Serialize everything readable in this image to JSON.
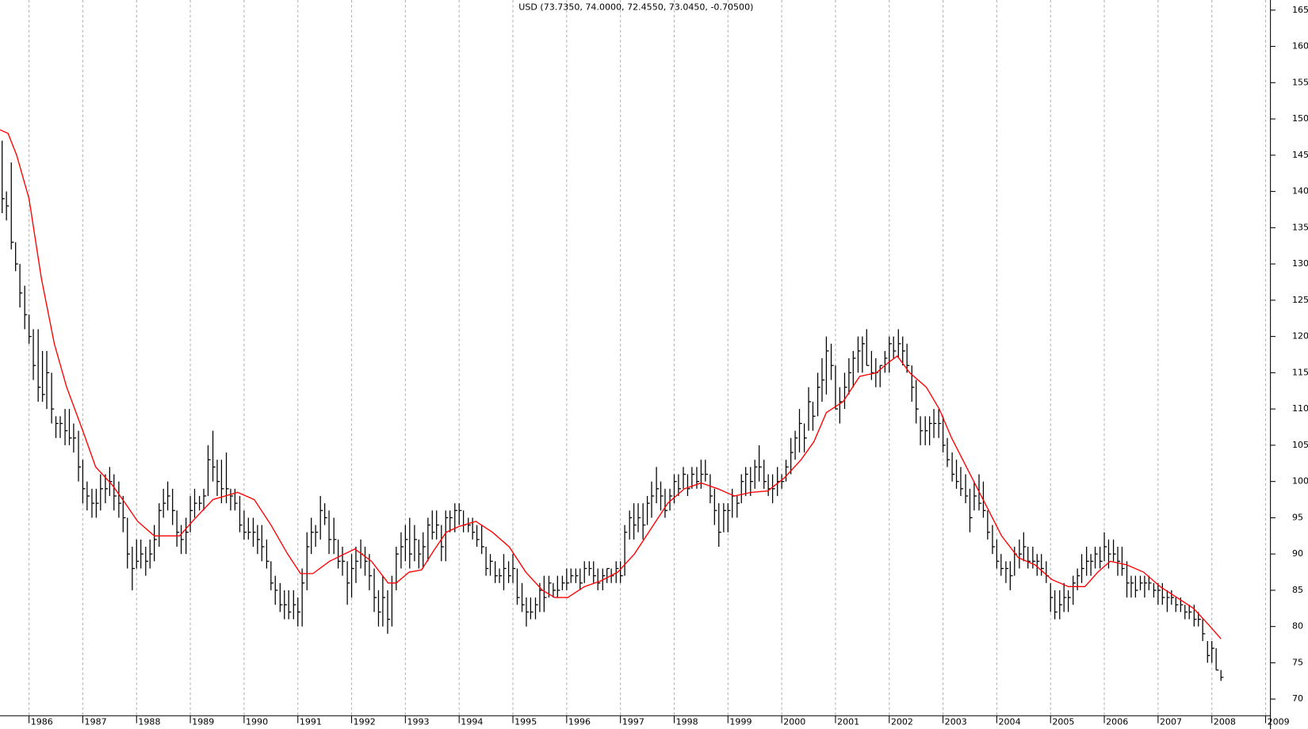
{
  "chart_data": {
    "type": "ohlc",
    "title": "USD (73.7350, 74.0000, 72.4550, 73.0450, -0.70500)",
    "xlim": [
      1985.46,
      2009.09
    ],
    "ylim": [
      67.7,
      166.4
    ],
    "xticks": [
      1986,
      1987,
      1988,
      1989,
      1990,
      1991,
      1992,
      1993,
      1994,
      1995,
      1996,
      1997,
      1998,
      1999,
      2000,
      2001,
      2002,
      2003,
      2004,
      2005,
      2006,
      2007,
      2008,
      2009
    ],
    "yticks": [
      70,
      75,
      80,
      85,
      90,
      95,
      100,
      105,
      110,
      115,
      120,
      125,
      130,
      135,
      140,
      145,
      150,
      155,
      160,
      165
    ],
    "grid": true,
    "color": "#000000",
    "x": [
      1985.5,
      1985.58,
      1985.67,
      1985.75,
      1985.83,
      1985.92,
      1986,
      1986.08,
      1986.17,
      1986.25,
      1986.33,
      1986.42,
      1986.5,
      1986.58,
      1986.67,
      1986.75,
      1986.83,
      1986.92,
      1987,
      1987.08,
      1987.17,
      1987.25,
      1987.33,
      1987.42,
      1987.5,
      1987.58,
      1987.67,
      1987.75,
      1987.83,
      1987.92,
      1988,
      1988.08,
      1988.17,
      1988.25,
      1988.33,
      1988.42,
      1988.5,
      1988.58,
      1988.67,
      1988.75,
      1988.83,
      1988.92,
      1989,
      1989.08,
      1989.17,
      1989.25,
      1989.33,
      1989.42,
      1989.5,
      1989.58,
      1989.67,
      1989.75,
      1989.83,
      1989.92,
      1990,
      1990.08,
      1990.17,
      1990.25,
      1990.33,
      1990.42,
      1990.5,
      1990.58,
      1990.67,
      1990.75,
      1990.83,
      1990.92,
      1991,
      1991.08,
      1991.17,
      1991.25,
      1991.33,
      1991.42,
      1991.5,
      1991.58,
      1991.67,
      1991.75,
      1991.83,
      1991.92,
      1992,
      1992.08,
      1992.17,
      1992.25,
      1992.33,
      1992.42,
      1992.5,
      1992.58,
      1992.67,
      1992.75,
      1992.83,
      1992.92,
      1993,
      1993.08,
      1993.17,
      1993.25,
      1993.33,
      1993.42,
      1993.5,
      1993.58,
      1993.67,
      1993.75,
      1993.83,
      1993.92,
      1994,
      1994.08,
      1994.17,
      1994.25,
      1994.33,
      1994.42,
      1994.5,
      1994.58,
      1994.67,
      1994.75,
      1994.83,
      1994.92,
      1995,
      1995.08,
      1995.17,
      1995.25,
      1995.33,
      1995.42,
      1995.5,
      1995.58,
      1995.67,
      1995.75,
      1995.83,
      1995.92,
      1996,
      1996.08,
      1996.17,
      1996.25,
      1996.33,
      1996.42,
      1996.5,
      1996.58,
      1996.67,
      1996.75,
      1996.83,
      1996.92,
      1997,
      1997.08,
      1997.17,
      1997.25,
      1997.33,
      1997.42,
      1997.5,
      1997.58,
      1997.67,
      1997.75,
      1997.83,
      1997.92,
      1998,
      1998.08,
      1998.17,
      1998.25,
      1998.33,
      1998.42,
      1998.5,
      1998.58,
      1998.67,
      1998.75,
      1998.83,
      1998.92,
      1999,
      1999.08,
      1999.17,
      1999.25,
      1999.33,
      1999.42,
      1999.5,
      1999.58,
      1999.67,
      1999.75,
      1999.83,
      1999.92,
      2000,
      2000.08,
      2000.17,
      2000.25,
      2000.33,
      2000.42,
      2000.5,
      2000.58,
      2000.67,
      2000.75,
      2000.83,
      2000.92,
      2001,
      2001.08,
      2001.17,
      2001.25,
      2001.33,
      2001.42,
      2001.5,
      2001.58,
      2001.67,
      2001.75,
      2001.83,
      2001.92,
      2002,
      2002.08,
      2002.17,
      2002.25,
      2002.33,
      2002.42,
      2002.5,
      2002.58,
      2002.67,
      2002.75,
      2002.83,
      2002.92,
      2003,
      2003.08,
      2003.17,
      2003.25,
      2003.33,
      2003.42,
      2003.5,
      2003.58,
      2003.67,
      2003.75,
      2003.83,
      2003.92,
      2004,
      2004.08,
      2004.17,
      2004.25,
      2004.33,
      2004.42,
      2004.5,
      2004.58,
      2004.67,
      2004.75,
      2004.83,
      2004.92,
      2005,
      2005.08,
      2005.17,
      2005.25,
      2005.33,
      2005.42,
      2005.5,
      2005.58,
      2005.67,
      2005.75,
      2005.83,
      2005.92,
      2006,
      2006.08,
      2006.17,
      2006.25,
      2006.33,
      2006.42,
      2006.5,
      2006.58,
      2006.67,
      2006.75,
      2006.83,
      2006.92,
      2007,
      2007.08,
      2007.17,
      2007.25,
      2007.33,
      2007.42,
      2007.5,
      2007.58,
      2007.67,
      2007.75,
      2007.83,
      2007.92,
      2008,
      2008.08,
      2008.17
    ],
    "high": [
      147,
      140,
      144,
      133,
      130,
      127,
      123,
      121,
      121,
      118,
      118,
      115,
      109,
      109,
      110,
      110,
      108,
      107,
      103,
      100,
      99,
      99,
      101,
      101,
      102,
      101,
      100,
      98,
      95,
      91,
      92,
      92,
      91,
      92,
      94,
      97,
      99,
      100,
      99,
      96,
      94,
      95,
      98,
      99,
      98,
      99,
      105,
      107,
      103,
      103,
      104,
      99,
      99,
      98,
      96,
      95,
      95,
      94,
      94,
      92,
      89,
      87,
      86,
      85,
      85,
      85,
      84,
      88,
      93,
      95,
      94,
      98,
      97,
      96,
      95,
      92,
      91,
      89,
      90,
      91,
      92,
      91,
      90,
      88,
      85,
      87,
      85,
      87,
      91,
      93,
      94,
      95,
      94,
      92,
      93,
      95,
      96,
      96,
      94,
      96,
      96,
      97,
      97,
      96,
      95,
      95,
      94,
      94,
      91,
      90,
      89,
      88,
      90,
      89,
      90,
      88,
      86,
      84,
      84,
      84,
      86,
      87,
      87,
      86,
      87,
      87,
      88,
      88,
      88,
      88,
      89,
      89,
      89,
      88,
      88,
      88,
      88,
      89,
      89,
      94,
      96,
      97,
      97,
      97,
      98,
      100,
      102,
      100,
      99,
      99,
      101,
      101,
      102,
      101,
      102,
      102,
      103,
      103,
      101,
      99,
      97,
      97,
      97,
      99,
      98,
      101,
      102,
      102,
      103,
      105,
      103,
      101,
      101,
      102,
      101,
      103,
      106,
      107,
      110,
      108,
      113,
      111,
      115,
      117,
      120,
      119,
      116,
      113,
      115,
      117,
      118,
      120,
      120,
      121,
      118,
      117,
      116,
      118,
      120,
      120,
      121,
      120,
      119,
      116,
      114,
      109,
      109,
      109,
      110,
      110,
      109,
      106,
      104,
      103,
      102,
      101,
      99,
      100,
      101,
      100,
      96,
      94,
      92,
      90,
      89,
      89,
      91,
      92,
      93,
      91,
      91,
      90,
      90,
      89,
      86,
      85,
      85,
      86,
      85,
      87,
      88,
      90,
      91,
      90,
      91,
      91,
      93,
      92,
      92,
      91,
      91,
      89,
      87,
      87,
      87,
      87,
      87,
      86,
      86,
      86,
      85,
      85,
      84,
      84,
      83,
      83,
      83,
      82,
      81,
      78,
      78,
      77,
      74
    ],
    "low": [
      137,
      136,
      132,
      129,
      124,
      121,
      119,
      114,
      111,
      111,
      110,
      108,
      106,
      106,
      105,
      105,
      104,
      100,
      97,
      96,
      95,
      95,
      96,
      97,
      98,
      96,
      95,
      93,
      88,
      85,
      88,
      88,
      87,
      88,
      89,
      91,
      95,
      96,
      94,
      91,
      90,
      90,
      93,
      95,
      96,
      96,
      98,
      100,
      98,
      97,
      97,
      96,
      96,
      93,
      92,
      92,
      91,
      90,
      89,
      88,
      85,
      83,
      82,
      81,
      81,
      81,
      80,
      80,
      85,
      90,
      91,
      92,
      94,
      90,
      90,
      88,
      87,
      83,
      84,
      86,
      88,
      87,
      85,
      82,
      80,
      80,
      79,
      80,
      85,
      88,
      89,
      88,
      89,
      88,
      88,
      89,
      92,
      92,
      89,
      89,
      93,
      93,
      94,
      93,
      93,
      92,
      91,
      90,
      87,
      87,
      86,
      86,
      85,
      86,
      86,
      83,
      82,
      80,
      81,
      81,
      82,
      82,
      84,
      84,
      84,
      85,
      85,
      86,
      86,
      85,
      86,
      87,
      86,
      85,
      85,
      86,
      86,
      86,
      86,
      87,
      92,
      92,
      93,
      92,
      94,
      95,
      97,
      96,
      95,
      96,
      97,
      98,
      99,
      98,
      99,
      99,
      99,
      100,
      97,
      94,
      91,
      93,
      93,
      95,
      95,
      97,
      98,
      98,
      99,
      100,
      99,
      98,
      97,
      98,
      99,
      100,
      101,
      103,
      104,
      104,
      107,
      107,
      109,
      111,
      112,
      114,
      110,
      108,
      110,
      112,
      113,
      115,
      115,
      116,
      114,
      113,
      113,
      115,
      115,
      117,
      117,
      116,
      115,
      111,
      108,
      105,
      105,
      105,
      106,
      106,
      104,
      102,
      100,
      99,
      98,
      97,
      93,
      96,
      96,
      95,
      92,
      90,
      88,
      87,
      86,
      85,
      87,
      88,
      89,
      88,
      88,
      87,
      87,
      86,
      82,
      81,
      81,
      82,
      82,
      83,
      85,
      86,
      87,
      87,
      88,
      88,
      89,
      88,
      89,
      87,
      87,
      84,
      84,
      84,
      85,
      84,
      85,
      84,
      83,
      83,
      82,
      83,
      82,
      82,
      81,
      81,
      80,
      80,
      78,
      75,
      75,
      74,
      72.5
    ],
    "close": [
      139,
      138,
      133,
      130,
      126,
      123,
      120,
      116,
      113,
      112,
      115,
      110,
      108,
      108,
      107,
      106,
      106,
      102,
      99,
      98,
      97,
      97,
      99,
      99,
      100,
      98,
      97,
      95,
      90,
      88,
      89,
      90,
      89,
      90,
      92,
      96,
      97,
      98,
      96,
      93,
      92,
      93,
      96,
      97,
      97,
      98,
      103,
      102,
      100,
      99,
      99,
      98,
      97,
      94,
      93,
      93,
      93,
      92,
      91,
      89,
      86,
      85,
      83,
      83,
      82,
      83,
      82,
      86,
      91,
      93,
      93,
      96,
      95,
      92,
      92,
      89,
      89,
      86,
      88,
      89,
      90,
      89,
      87,
      84,
      82,
      84,
      81,
      86,
      90,
      91,
      92,
      90,
      92,
      90,
      91,
      94,
      93,
      94,
      91,
      95,
      95,
      96,
      96,
      94,
      94,
      93,
      92,
      91,
      88,
      89,
      87,
      87,
      88,
      87,
      88,
      84,
      83,
      82,
      82,
      83,
      85,
      84,
      86,
      85,
      85,
      86,
      86,
      87,
      87,
      86,
      88,
      88,
      87,
      86,
      87,
      88,
      87,
      88,
      87,
      93,
      95,
      94,
      95,
      94,
      97,
      98,
      99,
      98,
      96,
      98,
      100,
      99,
      101,
      99,
      101,
      100,
      101,
      101,
      98,
      96,
      93,
      96,
      96,
      98,
      97,
      100,
      101,
      100,
      102,
      102,
      100,
      99,
      99,
      100,
      100,
      102,
      104,
      106,
      108,
      106,
      111,
      109,
      113,
      114,
      118,
      116,
      110,
      111,
      113,
      115,
      117,
      118,
      119,
      116,
      115,
      115,
      116,
      117,
      119,
      118,
      119,
      118,
      116,
      113,
      110,
      107,
      107,
      108,
      108,
      108,
      105,
      103,
      101,
      100,
      99,
      98,
      95,
      98,
      97,
      96,
      93,
      91,
      89,
      88,
      88,
      87,
      90,
      90,
      91,
      89,
      89,
      89,
      88,
      87,
      84,
      82,
      83,
      84,
      84,
      86,
      87,
      88,
      89,
      89,
      90,
      89,
      91,
      90,
      90,
      89,
      88,
      86,
      86,
      85,
      86,
      86,
      86,
      85,
      85,
      84,
      84,
      84,
      83,
      83,
      82,
      82,
      81,
      81,
      79,
      76,
      77,
      74,
      73
    ],
    "moving_average": {
      "color": "#ff0000",
      "x": [
        1985.46,
        1985.61,
        1985.77,
        1986.0,
        1986.23,
        1986.47,
        1986.7,
        1987.0,
        1987.24,
        1987.55,
        1987.79,
        1988.02,
        1988.33,
        1988.8,
        1989.1,
        1989.42,
        1989.88,
        1990.19,
        1990.5,
        1990.81,
        1991.05,
        1991.28,
        1991.59,
        1992.06,
        1992.37,
        1992.68,
        1992.83,
        1993.07,
        1993.3,
        1993.53,
        1993.76,
        1994.0,
        1994.31,
        1994.62,
        1994.93,
        1995.24,
        1995.55,
        1995.78,
        1996.02,
        1996.33,
        1996.64,
        1996.95,
        1997.26,
        1997.57,
        1997.88,
        1998.19,
        1998.5,
        1998.81,
        1999.12,
        1999.43,
        1999.74,
        2000.05,
        2000.36,
        2000.6,
        2000.83,
        2001.14,
        2001.45,
        2001.76,
        2002.0,
        2002.15,
        2002.38,
        2002.69,
        2002.93,
        2003.16,
        2003.47,
        2003.78,
        2004.09,
        2004.4,
        2004.71,
        2005.02,
        2005.33,
        2005.64,
        2005.88,
        2006.11,
        2006.42,
        2006.73,
        2007.04,
        2007.35,
        2007.66,
        2007.97,
        2008.17
      ],
      "values": [
        148.5,
        148,
        145,
        139,
        128,
        119,
        113,
        107,
        102,
        99.5,
        97,
        94.5,
        92.5,
        92.5,
        95,
        97.5,
        98.5,
        97.5,
        94,
        90,
        87.3,
        87.3,
        89,
        90.7,
        89,
        86,
        86,
        87.5,
        87.8,
        90.5,
        93,
        93.8,
        94.5,
        93,
        91,
        87.5,
        85,
        84,
        84,
        85.5,
        86.3,
        87.5,
        90,
        93.5,
        97,
        99,
        99.8,
        99,
        98,
        98.5,
        98.7,
        100.5,
        103,
        105.5,
        109.5,
        111,
        114.5,
        115,
        116.5,
        117.3,
        115,
        113,
        110,
        106,
        101.5,
        97,
        92.5,
        89.5,
        88.5,
        86.5,
        85.5,
        85.5,
        87.5,
        89,
        88.5,
        87.5,
        85.5,
        84,
        82.5,
        80,
        78.3
      ]
    }
  }
}
